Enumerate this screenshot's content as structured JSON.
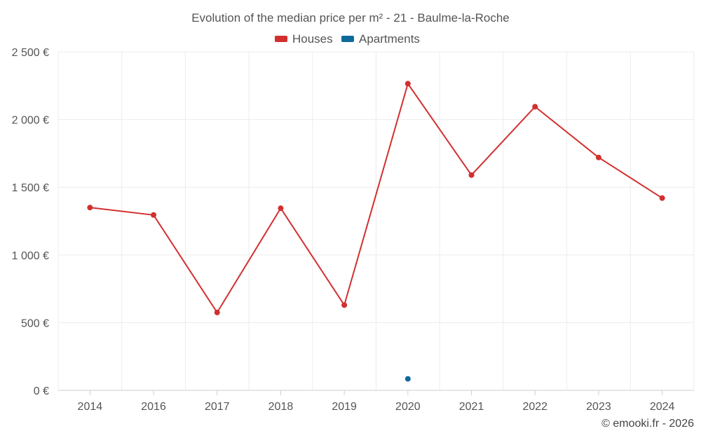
{
  "chart_data": {
    "type": "line",
    "title": "Evolution of the median price per m² - 21 - Baulme-la-Roche",
    "categories": [
      "2014",
      "2016",
      "2017",
      "2018",
      "2019",
      "2020",
      "2021",
      "2022",
      "2023",
      "2024"
    ],
    "series": [
      {
        "name": "Houses",
        "color": "#d32f2f",
        "values": [
          1350,
          1295,
          575,
          1345,
          630,
          2265,
          1590,
          2095,
          1720,
          1420
        ]
      },
      {
        "name": "Apartments",
        "color": "#0d6a9c",
        "values": [
          null,
          null,
          null,
          null,
          null,
          85,
          null,
          null,
          null,
          null
        ]
      }
    ],
    "ylim": [
      0,
      2500
    ],
    "yticks": [
      0,
      500,
      1000,
      1500,
      2000,
      2500
    ],
    "ytick_labels": [
      "0 €",
      "500 €",
      "1 000 €",
      "1 500 €",
      "2 000 €",
      "2 500 €"
    ],
    "xlabel": "",
    "ylabel": "",
    "grid": true,
    "legend_position": "top-center"
  },
  "credit": "© emooki.fr - 2026"
}
